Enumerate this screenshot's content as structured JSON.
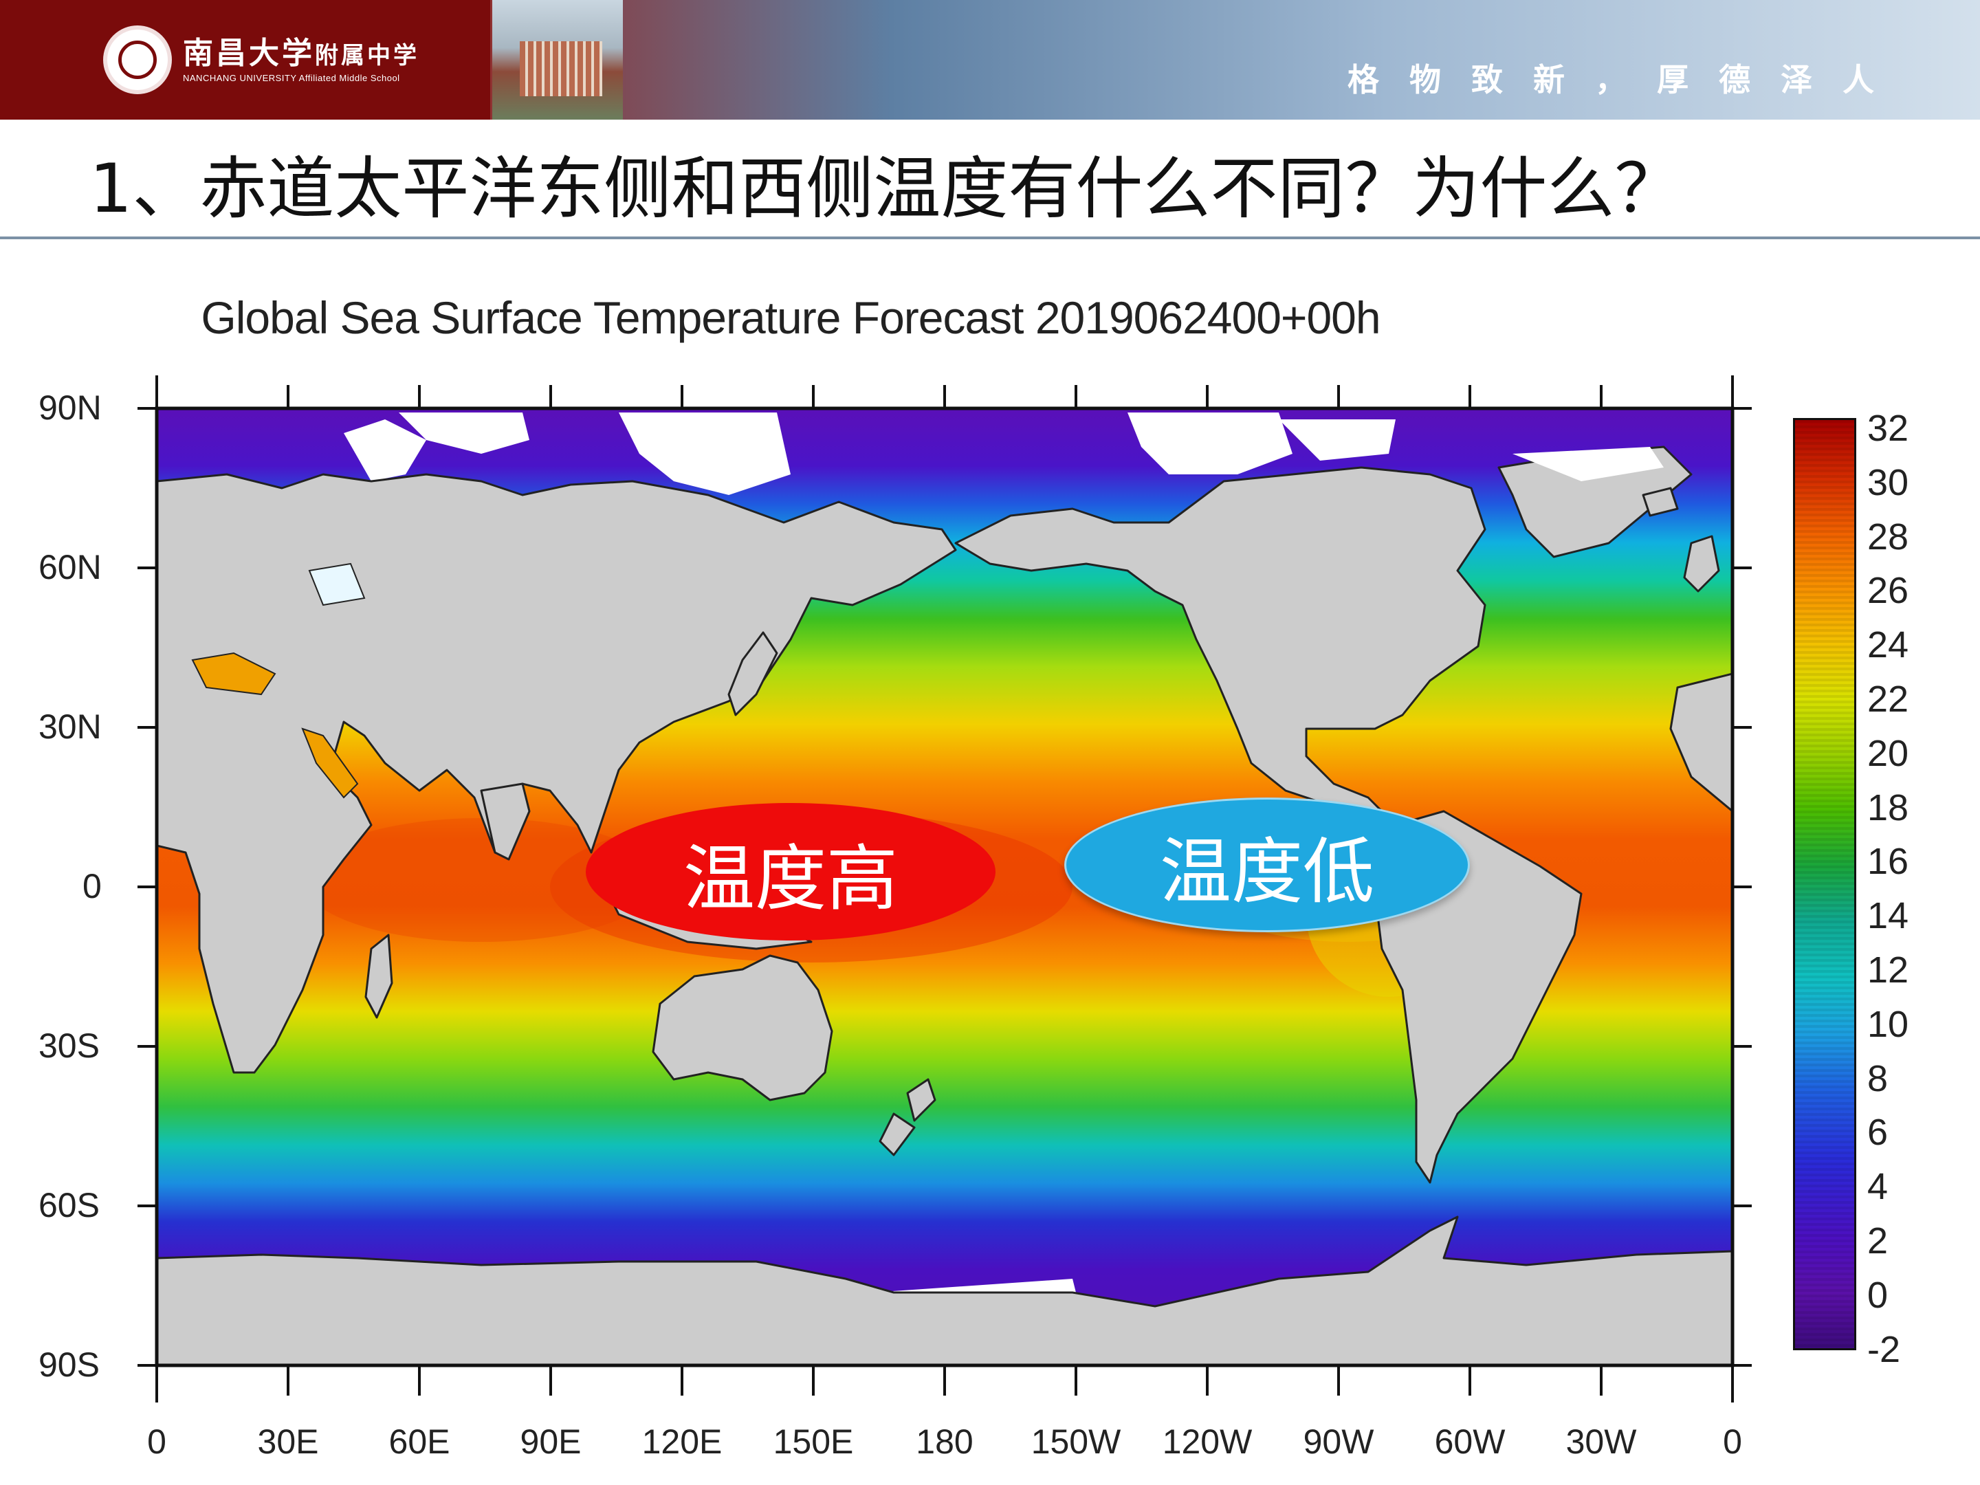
{
  "header": {
    "school_name_cn": "南昌大学",
    "school_suffix_cn": "附属中学",
    "school_name_en": "NANCHANG UNIVERSITY Affiliated Middle School",
    "motto": "格物致新，厚德泽人"
  },
  "slide": {
    "title": "1、赤道太平洋东侧和西侧温度有什么不同？为什么？"
  },
  "chart_data": {
    "type": "heatmap",
    "title": "Global Sea Surface Temperature Forecast 2019062400+00h",
    "y_tick_labels": [
      "90N",
      "60N",
      "30N",
      "0",
      "30S",
      "60S",
      "90S"
    ],
    "x_tick_labels": [
      "0",
      "30E",
      "60E",
      "90E",
      "120E",
      "150E",
      "180",
      "150W",
      "120W",
      "90W",
      "60W",
      "30W",
      "0"
    ],
    "colorbar": {
      "min": -2,
      "max": 32,
      "tick_labels": [
        "32",
        "30",
        "28",
        "26",
        "24",
        "22",
        "20",
        "18",
        "16",
        "14",
        "12",
        "10",
        "8",
        "6",
        "4",
        "2",
        "0",
        "-2"
      ]
    },
    "annotations": [
      {
        "text": "温度高",
        "color": "#ee0b0b"
      },
      {
        "text": "温度低",
        "color": "#1fa8e0"
      }
    ]
  }
}
